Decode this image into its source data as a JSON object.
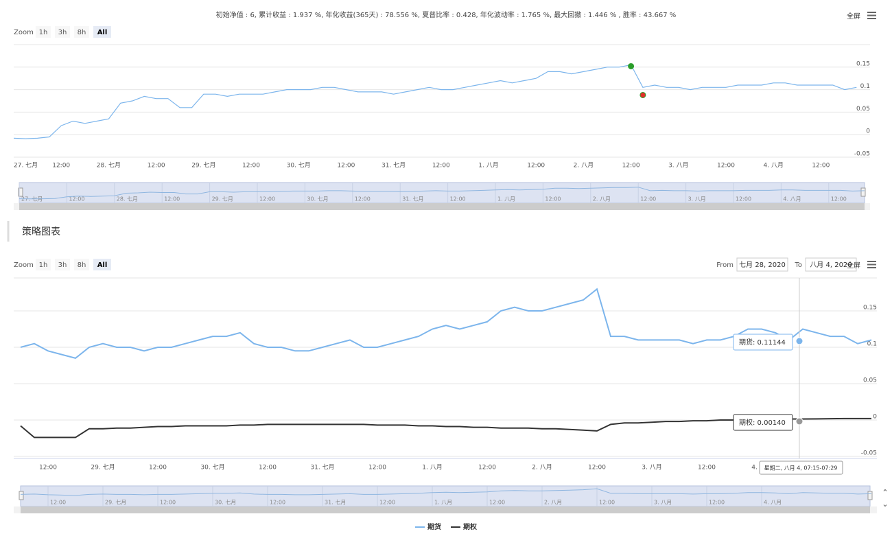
{
  "ui": {
    "stats": "初始净值 : 6, 累计收益 : 1.937 %, 年化收益(365天) : 78.556 %, 夏普比率 : 0.428, 年化波动率 : 1.765 %, 最大回撤 : 1.446 % , 胜率 : 43.667 %",
    "zoom_label": "Zoom",
    "zoom_buttons": [
      "1h",
      "3h",
      "8h",
      "All"
    ],
    "fullscreen": "全屏",
    "section_title": "策略图表",
    "from_label": "From",
    "from_value": "七月 28, 2020",
    "to_label": "To",
    "to_value": "八月 4, 2020"
  },
  "chart_data": [
    {
      "type": "line",
      "color": "#7cb5ec",
      "ylim": [
        -0.05,
        0.2
      ],
      "yticks": [
        -0.05,
        0,
        0.05,
        0.1,
        0.15
      ],
      "grid": true,
      "categories": [
        "27. 七月",
        null,
        null,
        null,
        "12:00",
        null,
        null,
        null,
        "28. 七月",
        null,
        null,
        null,
        "12:00",
        null,
        null,
        null,
        "29. 七月",
        null,
        null,
        null,
        "12:00",
        null,
        null,
        null,
        "30. 七月",
        null,
        null,
        null,
        "12:00",
        null,
        null,
        null,
        "31. 七月",
        null,
        null,
        null,
        "12:00",
        null,
        null,
        null,
        "1. 八月",
        null,
        null,
        null,
        "12:00",
        null,
        null,
        null,
        "2. 八月",
        null,
        null,
        null,
        "12:00",
        null,
        null,
        null,
        "3. 八月",
        null,
        null,
        null,
        "12:00",
        null,
        null,
        null,
        "4. 八月",
        null,
        null,
        null,
        "12:00",
        null,
        null,
        null
      ],
      "values": [
        -0.008,
        -0.009,
        -0.008,
        -0.005,
        0.02,
        0.03,
        0.025,
        0.03,
        0.035,
        0.07,
        0.075,
        0.085,
        0.08,
        0.08,
        0.06,
        0.06,
        0.09,
        0.09,
        0.085,
        0.09,
        0.09,
        0.09,
        0.095,
        0.1,
        0.1,
        0.1,
        0.105,
        0.105,
        0.1,
        0.095,
        0.095,
        0.095,
        0.09,
        0.095,
        0.1,
        0.105,
        0.1,
        0.1,
        0.105,
        0.11,
        0.115,
        0.12,
        0.115,
        0.12,
        0.125,
        0.14,
        0.14,
        0.135,
        0.14,
        0.145,
        0.15,
        0.15,
        0.155,
        0.105,
        0.11,
        0.105,
        0.105,
        0.1,
        0.105,
        0.105,
        0.105,
        0.11,
        0.11,
        0.11,
        0.115,
        0.115,
        0.11,
        0.11,
        0.11,
        0.11,
        0.1,
        0.105
      ],
      "flags": {
        "colors": [
          "#2a9d2a",
          "#e0302a"
        ],
        "values": [
          null,
          null,
          null,
          null,
          null,
          null,
          null,
          null,
          null,
          null,
          null,
          null,
          null,
          null,
          null,
          null,
          null,
          null,
          null,
          null,
          null,
          null,
          null,
          null,
          null,
          null,
          null,
          null,
          null,
          null,
          null,
          null,
          null,
          null,
          null,
          null,
          null,
          null,
          null,
          null,
          null,
          null,
          null,
          null,
          null,
          null,
          null,
          null,
          null,
          null,
          null,
          null,
          0.152,
          0.088,
          null,
          null,
          null,
          null,
          null,
          null,
          null,
          null,
          null,
          null,
          null,
          null,
          null,
          null,
          null,
          null,
          null,
          null
        ]
      }
    },
    {
      "type": "line",
      "ylim": [
        -0.05,
        0.2
      ],
      "yticks": [
        -0.05,
        0,
        0.05,
        0.1,
        0.15
      ],
      "grid": true,
      "categories": [
        null,
        null,
        "12:00",
        null,
        null,
        null,
        "29. 七月",
        null,
        null,
        null,
        "12:00",
        null,
        null,
        null,
        "30. 七月",
        null,
        null,
        null,
        "12:00",
        null,
        null,
        null,
        "31. 七月",
        null,
        null,
        null,
        "12:00",
        null,
        null,
        null,
        "1. 八月",
        null,
        null,
        null,
        "12:00",
        null,
        null,
        null,
        "2. 八月",
        null,
        null,
        null,
        "12:00",
        null,
        null,
        null,
        "3. 八月",
        null,
        null,
        null,
        "12:00",
        null,
        null,
        null,
        "4. 八月",
        null,
        null,
        null,
        null,
        null,
        null,
        null,
        null
      ],
      "series": [
        {
          "name": "期货",
          "color": "#7cb5ec",
          "values": [
            0.1,
            0.105,
            0.095,
            0.09,
            0.085,
            0.1,
            0.105,
            0.1,
            0.1,
            0.095,
            0.1,
            0.1,
            0.105,
            0.11,
            0.115,
            0.115,
            0.12,
            0.105,
            0.1,
            0.1,
            0.095,
            0.095,
            0.1,
            0.105,
            0.11,
            0.1,
            0.1,
            0.105,
            0.11,
            0.115,
            0.125,
            0.13,
            0.125,
            0.13,
            0.135,
            0.15,
            0.155,
            0.15,
            0.15,
            0.155,
            0.16,
            0.165,
            0.18,
            0.115,
            0.115,
            0.11,
            0.11,
            0.11,
            0.11,
            0.105,
            0.11,
            0.11,
            0.115,
            0.125,
            0.125,
            0.12,
            0.11,
            0.125,
            0.12,
            0.115,
            0.115,
            0.105,
            0.11
          ]
        },
        {
          "name": "期权",
          "color": "#333333",
          "values": [
            -0.008,
            -0.024,
            -0.024,
            -0.024,
            -0.024,
            -0.012,
            -0.012,
            -0.011,
            -0.011,
            -0.01,
            -0.009,
            -0.009,
            -0.008,
            -0.008,
            -0.008,
            -0.008,
            -0.007,
            -0.007,
            -0.006,
            -0.006,
            -0.006,
            -0.006,
            -0.006,
            -0.006,
            -0.006,
            -0.006,
            -0.007,
            -0.007,
            -0.007,
            -0.008,
            -0.008,
            -0.009,
            -0.009,
            -0.01,
            -0.01,
            -0.011,
            -0.011,
            -0.011,
            -0.012,
            -0.012,
            -0.013,
            -0.014,
            -0.015,
            -0.006,
            -0.004,
            -0.004,
            -0.003,
            -0.002,
            -0.002,
            -0.001,
            -0.001,
            0.0,
            0.0,
            0.001,
            0.001,
            0.001,
            0.0014,
            0.0014,
            0.0015,
            0.0018,
            0.002,
            0.002,
            0.002
          ]
        }
      ],
      "tooltip": {
        "header": "星期二, 八月 4, 07:15-07:29",
        "lines": [
          "期货: 0.11144",
          "期权: 0.00140"
        ]
      }
    }
  ]
}
